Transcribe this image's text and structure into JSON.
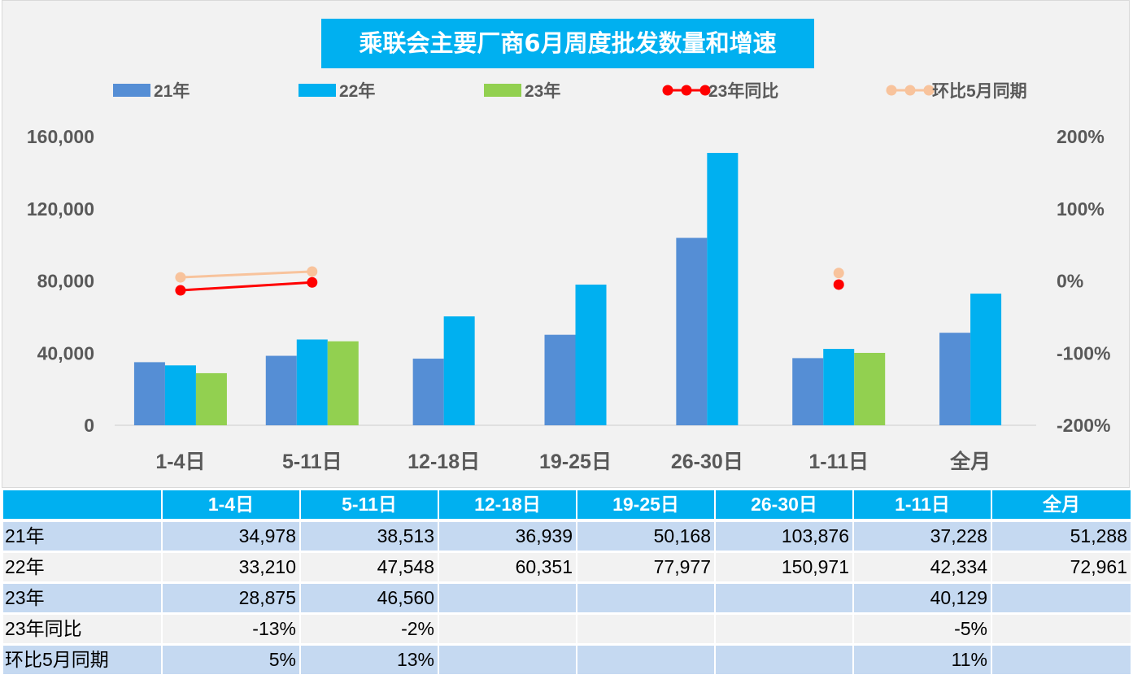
{
  "chart_data": {
    "type": "bar",
    "title": "乘联会主要厂商6月周度批发数量和增速",
    "categories": [
      "1-4日",
      "5-11日",
      "12-18日",
      "19-25日",
      "26-30日",
      "1-11日",
      "全月"
    ],
    "series": [
      {
        "name": "21年",
        "kind": "bar",
        "axis": "left",
        "color": "#558ed5",
        "values": [
          34978,
          38513,
          36939,
          50168,
          103876,
          37228,
          51288
        ]
      },
      {
        "name": "22年",
        "kind": "bar",
        "axis": "left",
        "color": "#00b0f0",
        "values": [
          33210,
          47548,
          60351,
          77977,
          150971,
          42334,
          72961
        ]
      },
      {
        "name": "23年",
        "kind": "bar",
        "axis": "left",
        "color": "#92d050",
        "values": [
          28875,
          46560,
          null,
          null,
          null,
          40129,
          null
        ]
      },
      {
        "name": "23年同比",
        "kind": "line",
        "axis": "right",
        "color": "#ff0000",
        "values": [
          -13,
          -2,
          null,
          null,
          null,
          -5,
          null
        ]
      },
      {
        "name": "环比5月同期",
        "kind": "line",
        "axis": "right",
        "color": "#f8c39c",
        "values": [
          5,
          13,
          null,
          null,
          null,
          11,
          null
        ]
      }
    ],
    "y_left": {
      "range": [
        0,
        160000
      ],
      "ticks": [
        0,
        40000,
        80000,
        120000,
        160000
      ],
      "tick_labels": [
        "0",
        "40,000",
        "80,000",
        "120,000",
        "160,000"
      ]
    },
    "y_right": {
      "range": [
        -200,
        200
      ],
      "unit": "%",
      "ticks": [
        -200,
        -100,
        0,
        100,
        200
      ],
      "tick_labels": [
        "-200%",
        "-100%",
        "0%",
        "100%",
        "200%"
      ]
    },
    "grid": false,
    "legend_placement": "top"
  },
  "table": {
    "headers": [
      "",
      "1-4日",
      "5-11日",
      "12-18日",
      "19-25日",
      "26-30日",
      "1-11日",
      "全月"
    ],
    "rows": [
      [
        "21年",
        "34,978",
        "38,513",
        "36,939",
        "50,168",
        "103,876",
        "37,228",
        "51,288"
      ],
      [
        "22年",
        "33,210",
        "47,548",
        "60,351",
        "77,977",
        "150,971",
        "42,334",
        "72,961"
      ],
      [
        "23年",
        "28,875",
        "46,560",
        "",
        "",
        "",
        "40,129",
        ""
      ],
      [
        "23年同比",
        "-13%",
        "-2%",
        "",
        "",
        "",
        "-5%",
        ""
      ],
      [
        "环比5月同期",
        "5%",
        "13%",
        "",
        "",
        "",
        "11%",
        ""
      ]
    ]
  }
}
